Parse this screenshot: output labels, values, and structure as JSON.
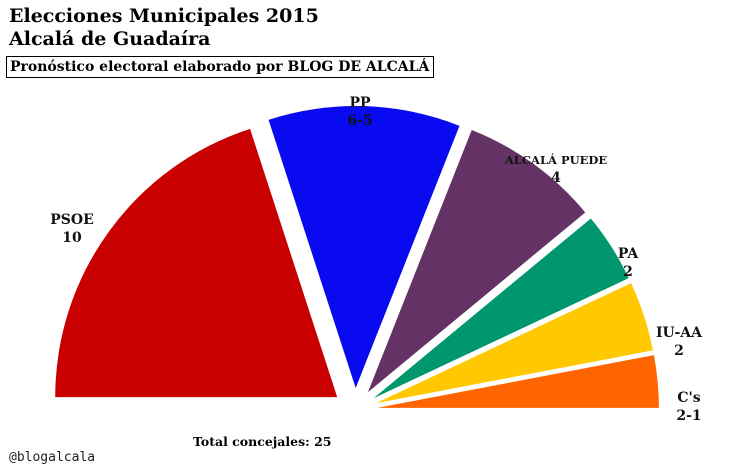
{
  "title_line1": "Elecciones Municipales 2015",
  "title_line2": "Alcalá de Guadaíra",
  "subtitle": "Pronóstico electoral elaborado por BLOG DE ALCALÁ",
  "total_label": "Total concejales: 25",
  "handle": "@blogalcala",
  "chart_data": {
    "type": "pie",
    "variant": "exploded half-donut (parliament)",
    "title": "Elecciones Municipales 2015",
    "subtitle": "Pronóstico electoral elaborado por BLOG DE ALCALÁ",
    "total": 25,
    "slices": [
      {
        "name": "PSOE",
        "label": "10",
        "value": 10,
        "color": "#c80000"
      },
      {
        "name": "PP",
        "label": "6-5",
        "value": 5.5,
        "color": "#0a0af0"
      },
      {
        "name": "ALCALÁ PUEDE",
        "label": "4",
        "value": 4,
        "color": "#643264"
      },
      {
        "name": "PA",
        "label": "2",
        "value": 2,
        "color": "#00966e"
      },
      {
        "name": "IU-AA",
        "label": "2",
        "value": 2,
        "color": "#ffc800"
      },
      {
        "name": "C's",
        "label": "2-1",
        "value": 1.5,
        "color": "#ff6400"
      }
    ]
  }
}
